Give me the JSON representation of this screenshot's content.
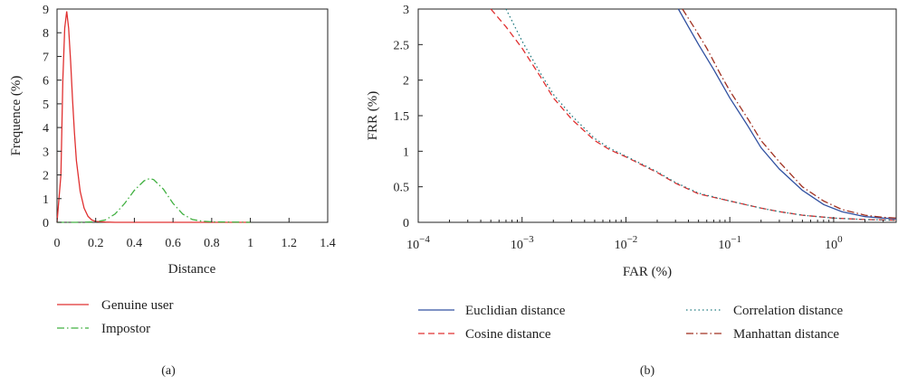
{
  "chart_data": [
    {
      "panel_label": "(a)",
      "type": "line",
      "xlabel": "Distance",
      "ylabel": "Frequence (%)",
      "xlim": [
        0,
        1.4
      ],
      "ylim": [
        0,
        9
      ],
      "xticks": [
        "0",
        "0.2",
        "0.4",
        "0.6",
        "0.8",
        "1",
        "1.2",
        "1.4"
      ],
      "yticks": [
        "0",
        "1",
        "2",
        "3",
        "4",
        "5",
        "6",
        "7",
        "8",
        "9"
      ],
      "legend_position": "below",
      "series": [
        {
          "name": "Genuine user",
          "color": "#e03030",
          "style": "solid",
          "x": [
            0,
            0.02,
            0.03,
            0.04,
            0.05,
            0.06,
            0.07,
            0.08,
            0.09,
            0.1,
            0.12,
            0.14,
            0.16,
            0.18,
            0.2,
            0.25,
            0.3,
            0.4,
            0.6,
            0.8,
            1.0
          ],
          "y": [
            0,
            2.0,
            6.0,
            8.2,
            8.9,
            8.2,
            6.8,
            5.2,
            3.8,
            2.6,
            1.3,
            0.6,
            0.25,
            0.1,
            0.04,
            0.01,
            0,
            0,
            0,
            0,
            0
          ]
        },
        {
          "name": "Impostor",
          "color": "#40b040",
          "style": "dashdot",
          "x": [
            0,
            0.1,
            0.2,
            0.25,
            0.3,
            0.35,
            0.4,
            0.45,
            0.48,
            0.5,
            0.55,
            0.6,
            0.65,
            0.7,
            0.75,
            0.8,
            0.9,
            1.0
          ],
          "y": [
            0,
            0,
            0.02,
            0.1,
            0.35,
            0.8,
            1.35,
            1.75,
            1.85,
            1.8,
            1.4,
            0.8,
            0.35,
            0.12,
            0.05,
            0.02,
            0.01,
            0
          ]
        }
      ]
    },
    {
      "panel_label": "(b)",
      "type": "line",
      "xlabel": "FAR (%)",
      "ylabel": "FRR (%)",
      "xscale": "log",
      "xlim": [
        0.0001,
        4
      ],
      "ylim": [
        0,
        3
      ],
      "xticks": [
        {
          "value": 0.0001,
          "base": "10",
          "exp": "−4"
        },
        {
          "value": 0.001,
          "base": "10",
          "exp": "−3"
        },
        {
          "value": 0.01,
          "base": "10",
          "exp": "−2"
        },
        {
          "value": 0.1,
          "base": "10",
          "exp": "−1"
        },
        {
          "value": 1,
          "base": "10",
          "exp": "0"
        }
      ],
      "yticks": [
        "0",
        "0.5",
        "1",
        "1.5",
        "2",
        "2.5",
        "3"
      ],
      "legend_position": "below",
      "series": [
        {
          "name": "Euclidian distance",
          "color": "#3050a0",
          "style": "solid",
          "x": [
            0.032,
            0.04,
            0.05,
            0.07,
            0.1,
            0.15,
            0.2,
            0.3,
            0.5,
            0.8,
            1.2,
            2,
            3,
            4
          ],
          "y": [
            3.0,
            2.75,
            2.5,
            2.15,
            1.75,
            1.35,
            1.05,
            0.75,
            0.45,
            0.25,
            0.15,
            0.08,
            0.06,
            0.05
          ]
        },
        {
          "name": "Cosine distance",
          "color": "#e03030",
          "style": "dashed",
          "x": [
            0.0005,
            0.0007,
            0.001,
            0.0015,
            0.002,
            0.003,
            0.005,
            0.007,
            0.01,
            0.02,
            0.03,
            0.05,
            0.1,
            0.2,
            0.3,
            0.5,
            1,
            2,
            4
          ],
          "y": [
            3.0,
            2.75,
            2.45,
            2.05,
            1.75,
            1.45,
            1.15,
            1.02,
            0.92,
            0.7,
            0.55,
            0.4,
            0.3,
            0.2,
            0.15,
            0.1,
            0.06,
            0.04,
            0.03
          ]
        },
        {
          "name": "Correlation distance",
          "color": "#207a80",
          "style": "dotted",
          "x": [
            0.0007,
            0.001,
            0.0015,
            0.002,
            0.003,
            0.005,
            0.007,
            0.01,
            0.02,
            0.03,
            0.05,
            0.1,
            0.2,
            0.3,
            0.5,
            1,
            2,
            4
          ],
          "y": [
            3.0,
            2.55,
            2.1,
            1.8,
            1.5,
            1.18,
            1.04,
            0.93,
            0.71,
            0.56,
            0.41,
            0.3,
            0.2,
            0.15,
            0.1,
            0.06,
            0.04,
            0.03
          ]
        },
        {
          "name": "Manhattan distance",
          "color": "#a03020",
          "style": "dashdot",
          "x": [
            0.035,
            0.045,
            0.06,
            0.08,
            0.1,
            0.15,
            0.2,
            0.3,
            0.5,
            0.8,
            1.2,
            2,
            3,
            4
          ],
          "y": [
            3.0,
            2.75,
            2.45,
            2.1,
            1.85,
            1.45,
            1.15,
            0.85,
            0.5,
            0.3,
            0.18,
            0.1,
            0.07,
            0.06
          ]
        }
      ]
    }
  ]
}
